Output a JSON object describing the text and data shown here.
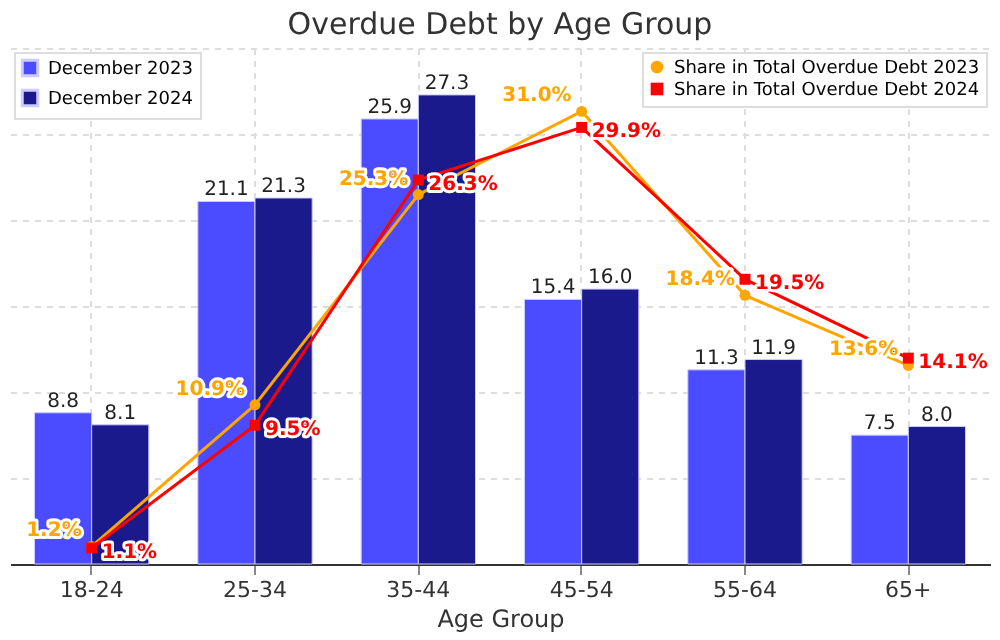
{
  "chart_data": {
    "type": "bar",
    "title": "Overdue Debt by Age Group",
    "xlabel": "Age Group",
    "categories": [
      "18-24",
      "25-34",
      "35-44",
      "45-54",
      "55-64",
      "65+"
    ],
    "series": [
      {
        "name": "December 2023",
        "color": "#4b4bff",
        "values": [
          8.8,
          21.1,
          25.9,
          15.4,
          11.3,
          7.5
        ],
        "value_labels": [
          "8.8",
          "21.1",
          "25.9",
          "15.4",
          "11.3",
          "7.5"
        ]
      },
      {
        "name": "December 2024",
        "color": "#1a1a8c",
        "values": [
          8.1,
          21.3,
          27.3,
          16.0,
          11.9,
          8.0
        ],
        "value_labels": [
          "8.1",
          "21.3",
          "27.3",
          "16.0",
          "11.9",
          "8.0"
        ]
      },
      {
        "name": "Share in Total Overdue Debt 2023",
        "type": "line",
        "axis": "y2",
        "marker": "circle",
        "color": "#ffa500",
        "values": [
          1.2,
          10.9,
          25.3,
          31.0,
          18.4,
          13.6
        ],
        "value_labels": [
          "1.2%",
          "10.9%",
          "25.3%",
          "31.0%",
          "18.4%",
          "13.6%"
        ]
      },
      {
        "name": "Share in Total Overdue Debt 2024",
        "type": "line",
        "axis": "y2",
        "marker": "square",
        "color": "#ff0000",
        "values": [
          1.1,
          9.5,
          26.3,
          29.9,
          19.5,
          14.1
        ],
        "value_labels": [
          "1.1%",
          "9.5%",
          "26.3%",
          "29.9%",
          "19.5%",
          "14.1%"
        ]
      }
    ],
    "grid": true,
    "legend": "top",
    "tick_labels": "x",
    "line_style": "solid"
  }
}
